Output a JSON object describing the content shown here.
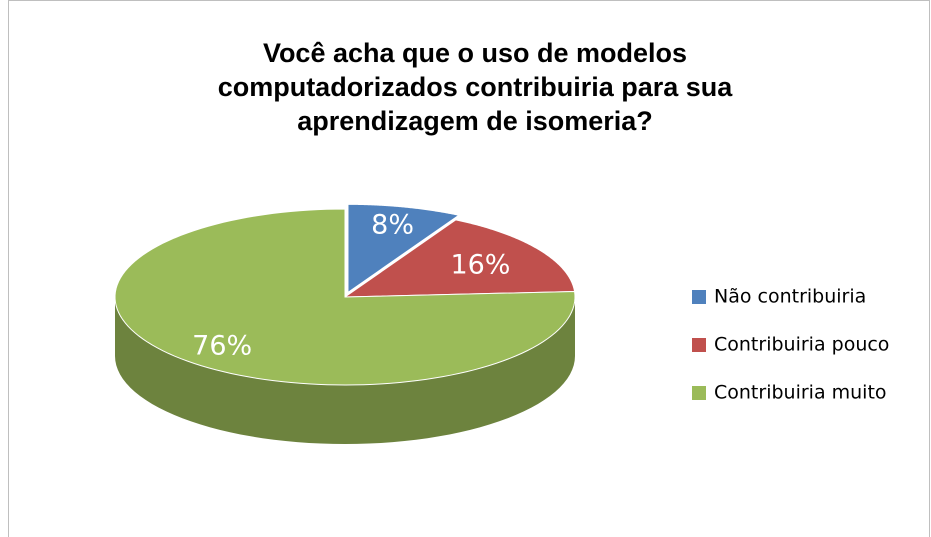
{
  "chart_data": {
    "type": "pie",
    "title": "Você acha que o uso de modelos computadorizados contribuiria para sua aprendizagem de isomeria?",
    "categories": [
      "Não contribuiria",
      "Contribuiria pouco",
      "Contribuiria muito"
    ],
    "values": [
      8,
      16,
      76
    ],
    "value_labels": [
      "8%",
      "16%",
      "76%"
    ],
    "colors": [
      "#4f81bd",
      "#c0504d",
      "#9bbb59"
    ],
    "legend": "right"
  }
}
